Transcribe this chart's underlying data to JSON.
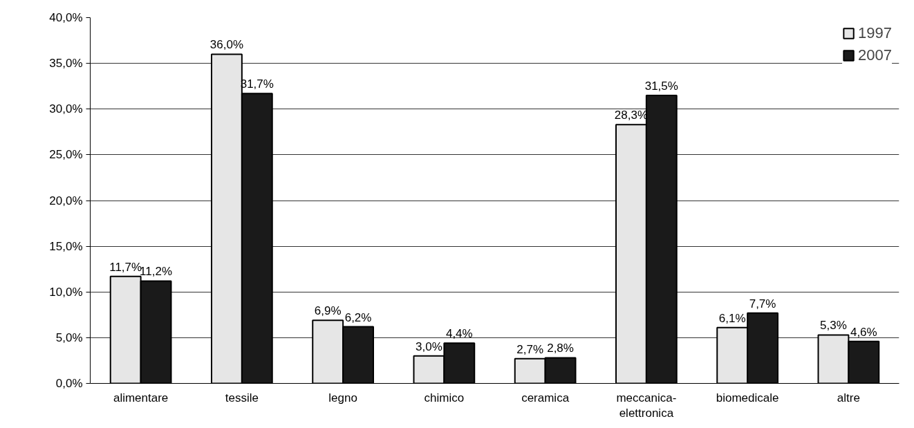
{
  "chart_data": {
    "type": "bar",
    "categories": [
      "alimentare",
      "tessile",
      "legno",
      "chimico",
      "ceramica",
      "meccanica-\nelettronica",
      "biomedicale",
      "altre"
    ],
    "series": [
      {
        "name": "1997",
        "color": "#e6e6e6",
        "values": [
          11.7,
          36.0,
          6.9,
          3.0,
          2.7,
          28.3,
          6.1,
          5.3
        ],
        "value_labels": [
          "11,7%",
          "36,0%",
          "6,9%",
          "3,0%",
          "2,7%",
          "28,3%",
          "6,1%",
          "5,3%"
        ]
      },
      {
        "name": "2007",
        "color": "#1a1a1a",
        "values": [
          11.2,
          31.7,
          6.2,
          4.4,
          2.8,
          31.5,
          7.7,
          4.6
        ],
        "value_labels": [
          "11,2%",
          "31,7%",
          "6,2%",
          "4,4%",
          "2,8%",
          "31,5%",
          "7,7%",
          "4,6%"
        ]
      }
    ],
    "ylim": [
      0,
      40
    ],
    "yticks": [
      {
        "value": 0,
        "label": "0,0%"
      },
      {
        "value": 5,
        "label": "5,0%"
      },
      {
        "value": 10,
        "label": "10,0%"
      },
      {
        "value": 15,
        "label": "15,0%"
      },
      {
        "value": 20,
        "label": "20,0%"
      },
      {
        "value": 25,
        "label": "25,0%"
      },
      {
        "value": 30,
        "label": "30,0%"
      },
      {
        "value": 35,
        "label": "35,0%"
      },
      {
        "value": 40,
        "label": "40,0%"
      }
    ],
    "grid": "y",
    "legend": "top right"
  }
}
